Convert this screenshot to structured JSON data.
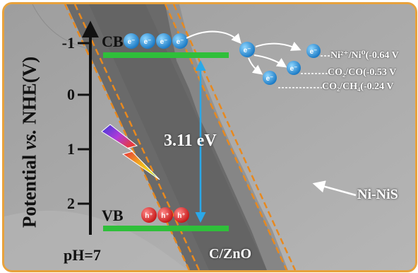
{
  "y_axis": {
    "label_prefix": "Potential ",
    "label_italic": "vs.",
    "label_suffix": " NHE(V)",
    "ticks": [
      "-1",
      "0",
      "1",
      "2"
    ]
  },
  "bands": {
    "cb_label": "CB",
    "vb_label": "VB",
    "band_gap": "3.11 eV"
  },
  "carriers": {
    "electron": "e⁻",
    "hole": "h⁺"
  },
  "potentials": [
    {
      "label": "Ni²⁺/Ni⁰(-0.64 V"
    },
    {
      "label": "CO₂/CO(-0.53 V"
    },
    {
      "label": "CO₂/CH₄(-0.24 V"
    }
  ],
  "materials": {
    "shell": "Ni-NiS",
    "core": "C/ZnO"
  },
  "condition": "pH=7",
  "colors": {
    "frame": "#e8a23c",
    "band_line": "#2fbf3a",
    "gap_arrow": "#2aa8e8",
    "electron": "#2a9ad8",
    "hole": "#e23030",
    "dashed_boundary": "#e8891e"
  },
  "icons": [
    "lightning-icon"
  ]
}
